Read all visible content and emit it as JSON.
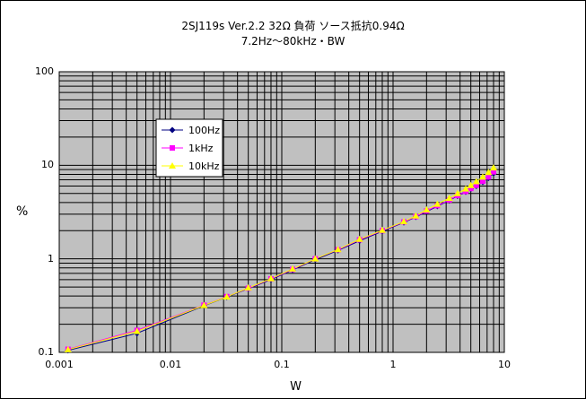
{
  "chart_data": {
    "type": "line",
    "title": "2SJ119s Ver.2.2 32Ω 負荷 ソース抵抗0.94Ω",
    "subtitle": "7.2Hz～80kHz・BW",
    "xlabel": "W",
    "ylabel": "%",
    "xscale": "log",
    "yscale": "log",
    "xlim": [
      0.001,
      10
    ],
    "ylim": [
      0.1,
      100
    ],
    "x_tick_labels": [
      "0.001",
      "0.01",
      "0.1",
      "1",
      "10"
    ],
    "y_tick_labels": [
      "0.1",
      "1",
      "10",
      "100"
    ],
    "grid": true,
    "plot_background": "#c0c0c0",
    "legend_position": "upper-left",
    "series": [
      {
        "name": "100Hz",
        "color": "#000080",
        "marker": "diamond",
        "x": [
          0.0012,
          0.005,
          0.02,
          0.032,
          0.05,
          0.08,
          0.125,
          0.2,
          0.32,
          0.5,
          0.8,
          1.25,
          1.6,
          2.0,
          2.5,
          3.2,
          3.8,
          4.5,
          5.0,
          5.6,
          6.4,
          7.2,
          8.0
        ],
        "y": [
          0.105,
          0.16,
          0.315,
          0.39,
          0.48,
          0.6,
          0.76,
          0.98,
          1.23,
          1.56,
          1.97,
          2.45,
          2.8,
          3.2,
          3.65,
          4.2,
          4.7,
          5.2,
          5.6,
          6.0,
          6.6,
          7.3,
          8.2
        ]
      },
      {
        "name": "1kHz",
        "color": "#ff00ff",
        "marker": "square",
        "x": [
          0.0012,
          0.005,
          0.02,
          0.032,
          0.05,
          0.08,
          0.125,
          0.2,
          0.32,
          0.5,
          0.8,
          1.25,
          1.6,
          2.0,
          2.5,
          3.2,
          3.8,
          4.5,
          5.0,
          5.6,
          6.4,
          7.2,
          8.0
        ],
        "y": [
          0.108,
          0.172,
          0.32,
          0.395,
          0.485,
          0.61,
          0.77,
          1.0,
          1.25,
          1.6,
          2.0,
          2.48,
          2.83,
          3.25,
          3.7,
          4.25,
          4.75,
          5.25,
          5.65,
          6.1,
          6.75,
          7.5,
          8.5
        ]
      },
      {
        "name": "10kHz",
        "color": "#ffff00",
        "marker": "triangle",
        "x": [
          0.0012,
          0.005,
          0.02,
          0.032,
          0.05,
          0.08,
          0.125,
          0.2,
          0.32,
          0.5,
          0.8,
          1.25,
          1.6,
          2.0,
          2.5,
          3.2,
          3.8,
          4.5,
          5.0,
          5.6,
          6.4,
          7.2,
          8.0
        ],
        "y": [
          0.107,
          0.168,
          0.318,
          0.392,
          0.49,
          0.615,
          0.78,
          1.0,
          1.26,
          1.62,
          2.02,
          2.5,
          2.88,
          3.35,
          3.85,
          4.45,
          5.0,
          5.6,
          6.1,
          6.7,
          7.5,
          8.4,
          9.4
        ]
      }
    ]
  }
}
